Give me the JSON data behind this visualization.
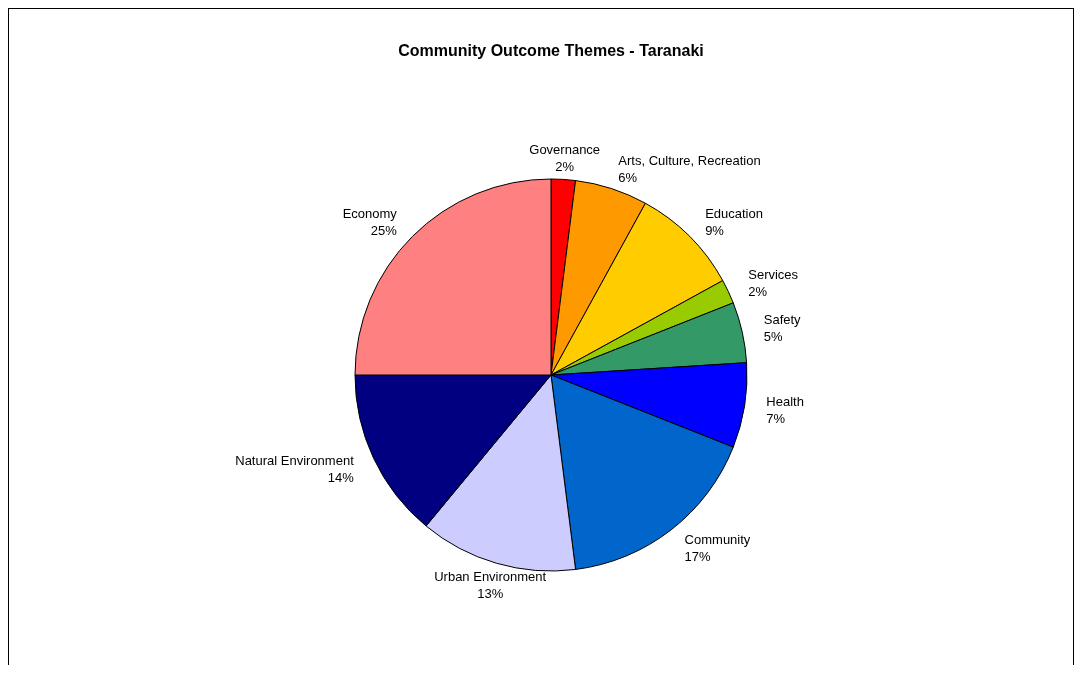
{
  "chart_data": {
    "type": "pie",
    "title": "Community Outcome Themes - Taranaki",
    "categories": [
      "Governance",
      "Arts, Culture, Recreation",
      "Education",
      "Services",
      "Safety",
      "Health",
      "Community",
      "Urban Environment",
      "Natural Environment",
      "Economy"
    ],
    "values": [
      2,
      6,
      9,
      2,
      5,
      7,
      17,
      13,
      14,
      25
    ],
    "colors": [
      "#ff0000",
      "#ff9900",
      "#ffcc00",
      "#99cc00",
      "#339966",
      "#0000ff",
      "#0066cc",
      "#ccccff",
      "#000080",
      "#ff8080"
    ],
    "value_labels": [
      "2%",
      "6%",
      "9%",
      "2%",
      "5%",
      "7%",
      "17%",
      "13%",
      "14%",
      "25%"
    ]
  }
}
